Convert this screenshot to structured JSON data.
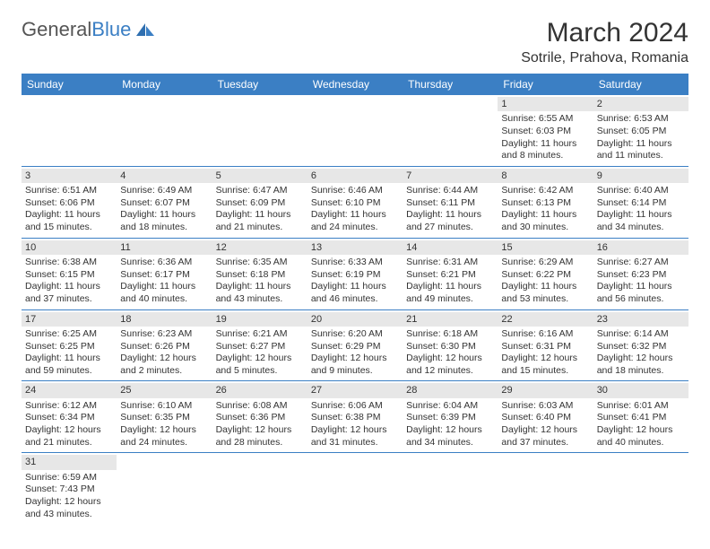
{
  "logo": {
    "text_general": "General",
    "text_blue": "Blue",
    "general_color": "#666666",
    "blue_color": "#3b7fc4"
  },
  "title": "March 2024",
  "location": "Sotrile, Prahova, Romania",
  "header_bg": "#3b7fc4",
  "day_bg": "#e7e7e7",
  "border_color": "#3b7fc4",
  "weekdays": [
    "Sunday",
    "Monday",
    "Tuesday",
    "Wednesday",
    "Thursday",
    "Friday",
    "Saturday"
  ],
  "weeks": [
    [
      null,
      null,
      null,
      null,
      null,
      {
        "num": "1",
        "sunrise": "Sunrise: 6:55 AM",
        "sunset": "Sunset: 6:03 PM",
        "daylight": "Daylight: 11 hours and 8 minutes."
      },
      {
        "num": "2",
        "sunrise": "Sunrise: 6:53 AM",
        "sunset": "Sunset: 6:05 PM",
        "daylight": "Daylight: 11 hours and 11 minutes."
      }
    ],
    [
      {
        "num": "3",
        "sunrise": "Sunrise: 6:51 AM",
        "sunset": "Sunset: 6:06 PM",
        "daylight": "Daylight: 11 hours and 15 minutes."
      },
      {
        "num": "4",
        "sunrise": "Sunrise: 6:49 AM",
        "sunset": "Sunset: 6:07 PM",
        "daylight": "Daylight: 11 hours and 18 minutes."
      },
      {
        "num": "5",
        "sunrise": "Sunrise: 6:47 AM",
        "sunset": "Sunset: 6:09 PM",
        "daylight": "Daylight: 11 hours and 21 minutes."
      },
      {
        "num": "6",
        "sunrise": "Sunrise: 6:46 AM",
        "sunset": "Sunset: 6:10 PM",
        "daylight": "Daylight: 11 hours and 24 minutes."
      },
      {
        "num": "7",
        "sunrise": "Sunrise: 6:44 AM",
        "sunset": "Sunset: 6:11 PM",
        "daylight": "Daylight: 11 hours and 27 minutes."
      },
      {
        "num": "8",
        "sunrise": "Sunrise: 6:42 AM",
        "sunset": "Sunset: 6:13 PM",
        "daylight": "Daylight: 11 hours and 30 minutes."
      },
      {
        "num": "9",
        "sunrise": "Sunrise: 6:40 AM",
        "sunset": "Sunset: 6:14 PM",
        "daylight": "Daylight: 11 hours and 34 minutes."
      }
    ],
    [
      {
        "num": "10",
        "sunrise": "Sunrise: 6:38 AM",
        "sunset": "Sunset: 6:15 PM",
        "daylight": "Daylight: 11 hours and 37 minutes."
      },
      {
        "num": "11",
        "sunrise": "Sunrise: 6:36 AM",
        "sunset": "Sunset: 6:17 PM",
        "daylight": "Daylight: 11 hours and 40 minutes."
      },
      {
        "num": "12",
        "sunrise": "Sunrise: 6:35 AM",
        "sunset": "Sunset: 6:18 PM",
        "daylight": "Daylight: 11 hours and 43 minutes."
      },
      {
        "num": "13",
        "sunrise": "Sunrise: 6:33 AM",
        "sunset": "Sunset: 6:19 PM",
        "daylight": "Daylight: 11 hours and 46 minutes."
      },
      {
        "num": "14",
        "sunrise": "Sunrise: 6:31 AM",
        "sunset": "Sunset: 6:21 PM",
        "daylight": "Daylight: 11 hours and 49 minutes."
      },
      {
        "num": "15",
        "sunrise": "Sunrise: 6:29 AM",
        "sunset": "Sunset: 6:22 PM",
        "daylight": "Daylight: 11 hours and 53 minutes."
      },
      {
        "num": "16",
        "sunrise": "Sunrise: 6:27 AM",
        "sunset": "Sunset: 6:23 PM",
        "daylight": "Daylight: 11 hours and 56 minutes."
      }
    ],
    [
      {
        "num": "17",
        "sunrise": "Sunrise: 6:25 AM",
        "sunset": "Sunset: 6:25 PM",
        "daylight": "Daylight: 11 hours and 59 minutes."
      },
      {
        "num": "18",
        "sunrise": "Sunrise: 6:23 AM",
        "sunset": "Sunset: 6:26 PM",
        "daylight": "Daylight: 12 hours and 2 minutes."
      },
      {
        "num": "19",
        "sunrise": "Sunrise: 6:21 AM",
        "sunset": "Sunset: 6:27 PM",
        "daylight": "Daylight: 12 hours and 5 minutes."
      },
      {
        "num": "20",
        "sunrise": "Sunrise: 6:20 AM",
        "sunset": "Sunset: 6:29 PM",
        "daylight": "Daylight: 12 hours and 9 minutes."
      },
      {
        "num": "21",
        "sunrise": "Sunrise: 6:18 AM",
        "sunset": "Sunset: 6:30 PM",
        "daylight": "Daylight: 12 hours and 12 minutes."
      },
      {
        "num": "22",
        "sunrise": "Sunrise: 6:16 AM",
        "sunset": "Sunset: 6:31 PM",
        "daylight": "Daylight: 12 hours and 15 minutes."
      },
      {
        "num": "23",
        "sunrise": "Sunrise: 6:14 AM",
        "sunset": "Sunset: 6:32 PM",
        "daylight": "Daylight: 12 hours and 18 minutes."
      }
    ],
    [
      {
        "num": "24",
        "sunrise": "Sunrise: 6:12 AM",
        "sunset": "Sunset: 6:34 PM",
        "daylight": "Daylight: 12 hours and 21 minutes."
      },
      {
        "num": "25",
        "sunrise": "Sunrise: 6:10 AM",
        "sunset": "Sunset: 6:35 PM",
        "daylight": "Daylight: 12 hours and 24 minutes."
      },
      {
        "num": "26",
        "sunrise": "Sunrise: 6:08 AM",
        "sunset": "Sunset: 6:36 PM",
        "daylight": "Daylight: 12 hours and 28 minutes."
      },
      {
        "num": "27",
        "sunrise": "Sunrise: 6:06 AM",
        "sunset": "Sunset: 6:38 PM",
        "daylight": "Daylight: 12 hours and 31 minutes."
      },
      {
        "num": "28",
        "sunrise": "Sunrise: 6:04 AM",
        "sunset": "Sunset: 6:39 PM",
        "daylight": "Daylight: 12 hours and 34 minutes."
      },
      {
        "num": "29",
        "sunrise": "Sunrise: 6:03 AM",
        "sunset": "Sunset: 6:40 PM",
        "daylight": "Daylight: 12 hours and 37 minutes."
      },
      {
        "num": "30",
        "sunrise": "Sunrise: 6:01 AM",
        "sunset": "Sunset: 6:41 PM",
        "daylight": "Daylight: 12 hours and 40 minutes."
      }
    ],
    [
      {
        "num": "31",
        "sunrise": "Sunrise: 6:59 AM",
        "sunset": "Sunset: 7:43 PM",
        "daylight": "Daylight: 12 hours and 43 minutes."
      },
      null,
      null,
      null,
      null,
      null,
      null
    ]
  ]
}
